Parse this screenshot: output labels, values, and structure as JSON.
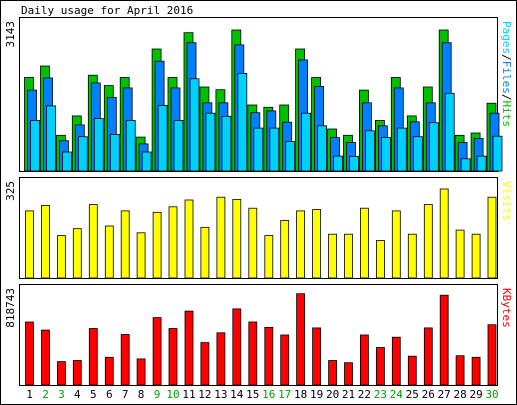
{
  "page": {
    "background": "#ffffff",
    "frame_color": "#000000"
  },
  "chart_data": {
    "type": "bar",
    "title": "Daily usage for April 2016",
    "categories": [
      "1",
      "2",
      "3",
      "4",
      "5",
      "6",
      "7",
      "8",
      "9",
      "10",
      "11",
      "12",
      "13",
      "14",
      "15",
      "16",
      "17",
      "18",
      "19",
      "20",
      "21",
      "22",
      "23",
      "24",
      "25",
      "26",
      "27",
      "28",
      "29",
      "30"
    ],
    "weekend_categories": [
      "2",
      "3",
      "9",
      "10",
      "16",
      "17",
      "23",
      "24",
      "30"
    ],
    "colors": {
      "hits": "#00c000",
      "files": "#0080ff",
      "pages": "#00d0ff",
      "visits": "#ffff00",
      "kbytes": "#ff0000",
      "weekday_label": "#000000",
      "weekend_label": "#00a000",
      "outline": "#000000"
    },
    "panels": [
      {
        "id": "hits-files-pages",
        "ymax_label": "3143",
        "ylim": [
          0,
          3143
        ],
        "right_label_parts": [
          {
            "text": "Pages",
            "color": "#00d0ff"
          },
          {
            "text": "/",
            "color": "#000000"
          },
          {
            "text": "Files",
            "color": "#0080ff"
          },
          {
            "text": "/",
            "color": "#000000"
          },
          {
            "text": "Hits",
            "color": "#00c000"
          }
        ],
        "series": [
          {
            "name": "Hits",
            "color": "#00c000",
            "values": [
              2070,
              2325,
              790,
              1220,
              2120,
              1890,
              2070,
              750,
              2700,
              2070,
              3060,
              1860,
              1800,
              3120,
              1460,
              1410,
              1460,
              2700,
              2070,
              930,
              790,
              1790,
              1120,
              2070,
              1220,
              1860,
              3120,
              790,
              840,
              1500
            ]
          },
          {
            "name": "Files",
            "color": "#0080ff",
            "values": [
              1790,
              2060,
              670,
              1020,
              1950,
              1630,
              1840,
              600,
              2430,
              1840,
              2840,
              1510,
              1510,
              2790,
              1290,
              1330,
              1080,
              2460,
              1870,
              740,
              630,
              1510,
              1000,
              1840,
              1090,
              1510,
              2840,
              630,
              720,
              1280
            ]
          },
          {
            "name": "Pages",
            "color": "#00d0ff",
            "values": [
              1120,
              1440,
              420,
              760,
              1160,
              810,
              1120,
              420,
              1450,
              1120,
              2040,
              1280,
              1210,
              2160,
              950,
              950,
              650,
              1280,
              1000,
              330,
              320,
              890,
              740,
              950,
              760,
              1070,
              1720,
              270,
              330,
              770
            ]
          }
        ]
      },
      {
        "id": "visits",
        "ymax_label": "325",
        "ylim": [
          0,
          325
        ],
        "right_label_parts": [
          {
            "text": "Visits",
            "color": "#ffff00"
          }
        ],
        "series": [
          {
            "name": "Visits",
            "color": "#ffff00",
            "values": [
              245,
              265,
              155,
              180,
              268,
              190,
              245,
              165,
              240,
              260,
              285,
              185,
              295,
              287,
              255,
              155,
              210,
              245,
              250,
              160,
              160,
              255,
              137,
              245,
              160,
              268,
              325,
              175,
              160,
              295
            ]
          }
        ]
      },
      {
        "id": "kbytes",
        "ymax_label": "818743",
        "ylim": [
          0,
          818743
        ],
        "right_label_parts": [
          {
            "text": "KBytes",
            "color": "#ff0000"
          }
        ],
        "series": [
          {
            "name": "KBytes",
            "color": "#ff0000",
            "values": [
              580000,
              505000,
              215000,
              225000,
              520000,
              255000,
              465000,
              240000,
              620000,
              520000,
              680000,
              390000,
              480000,
              700000,
              580000,
              530000,
              460000,
              840000,
              525000,
              225000,
              205000,
              460000,
              345000,
              440000,
              265000,
              525000,
              826000,
              270000,
              255000,
              555000
            ]
          }
        ]
      }
    ]
  }
}
